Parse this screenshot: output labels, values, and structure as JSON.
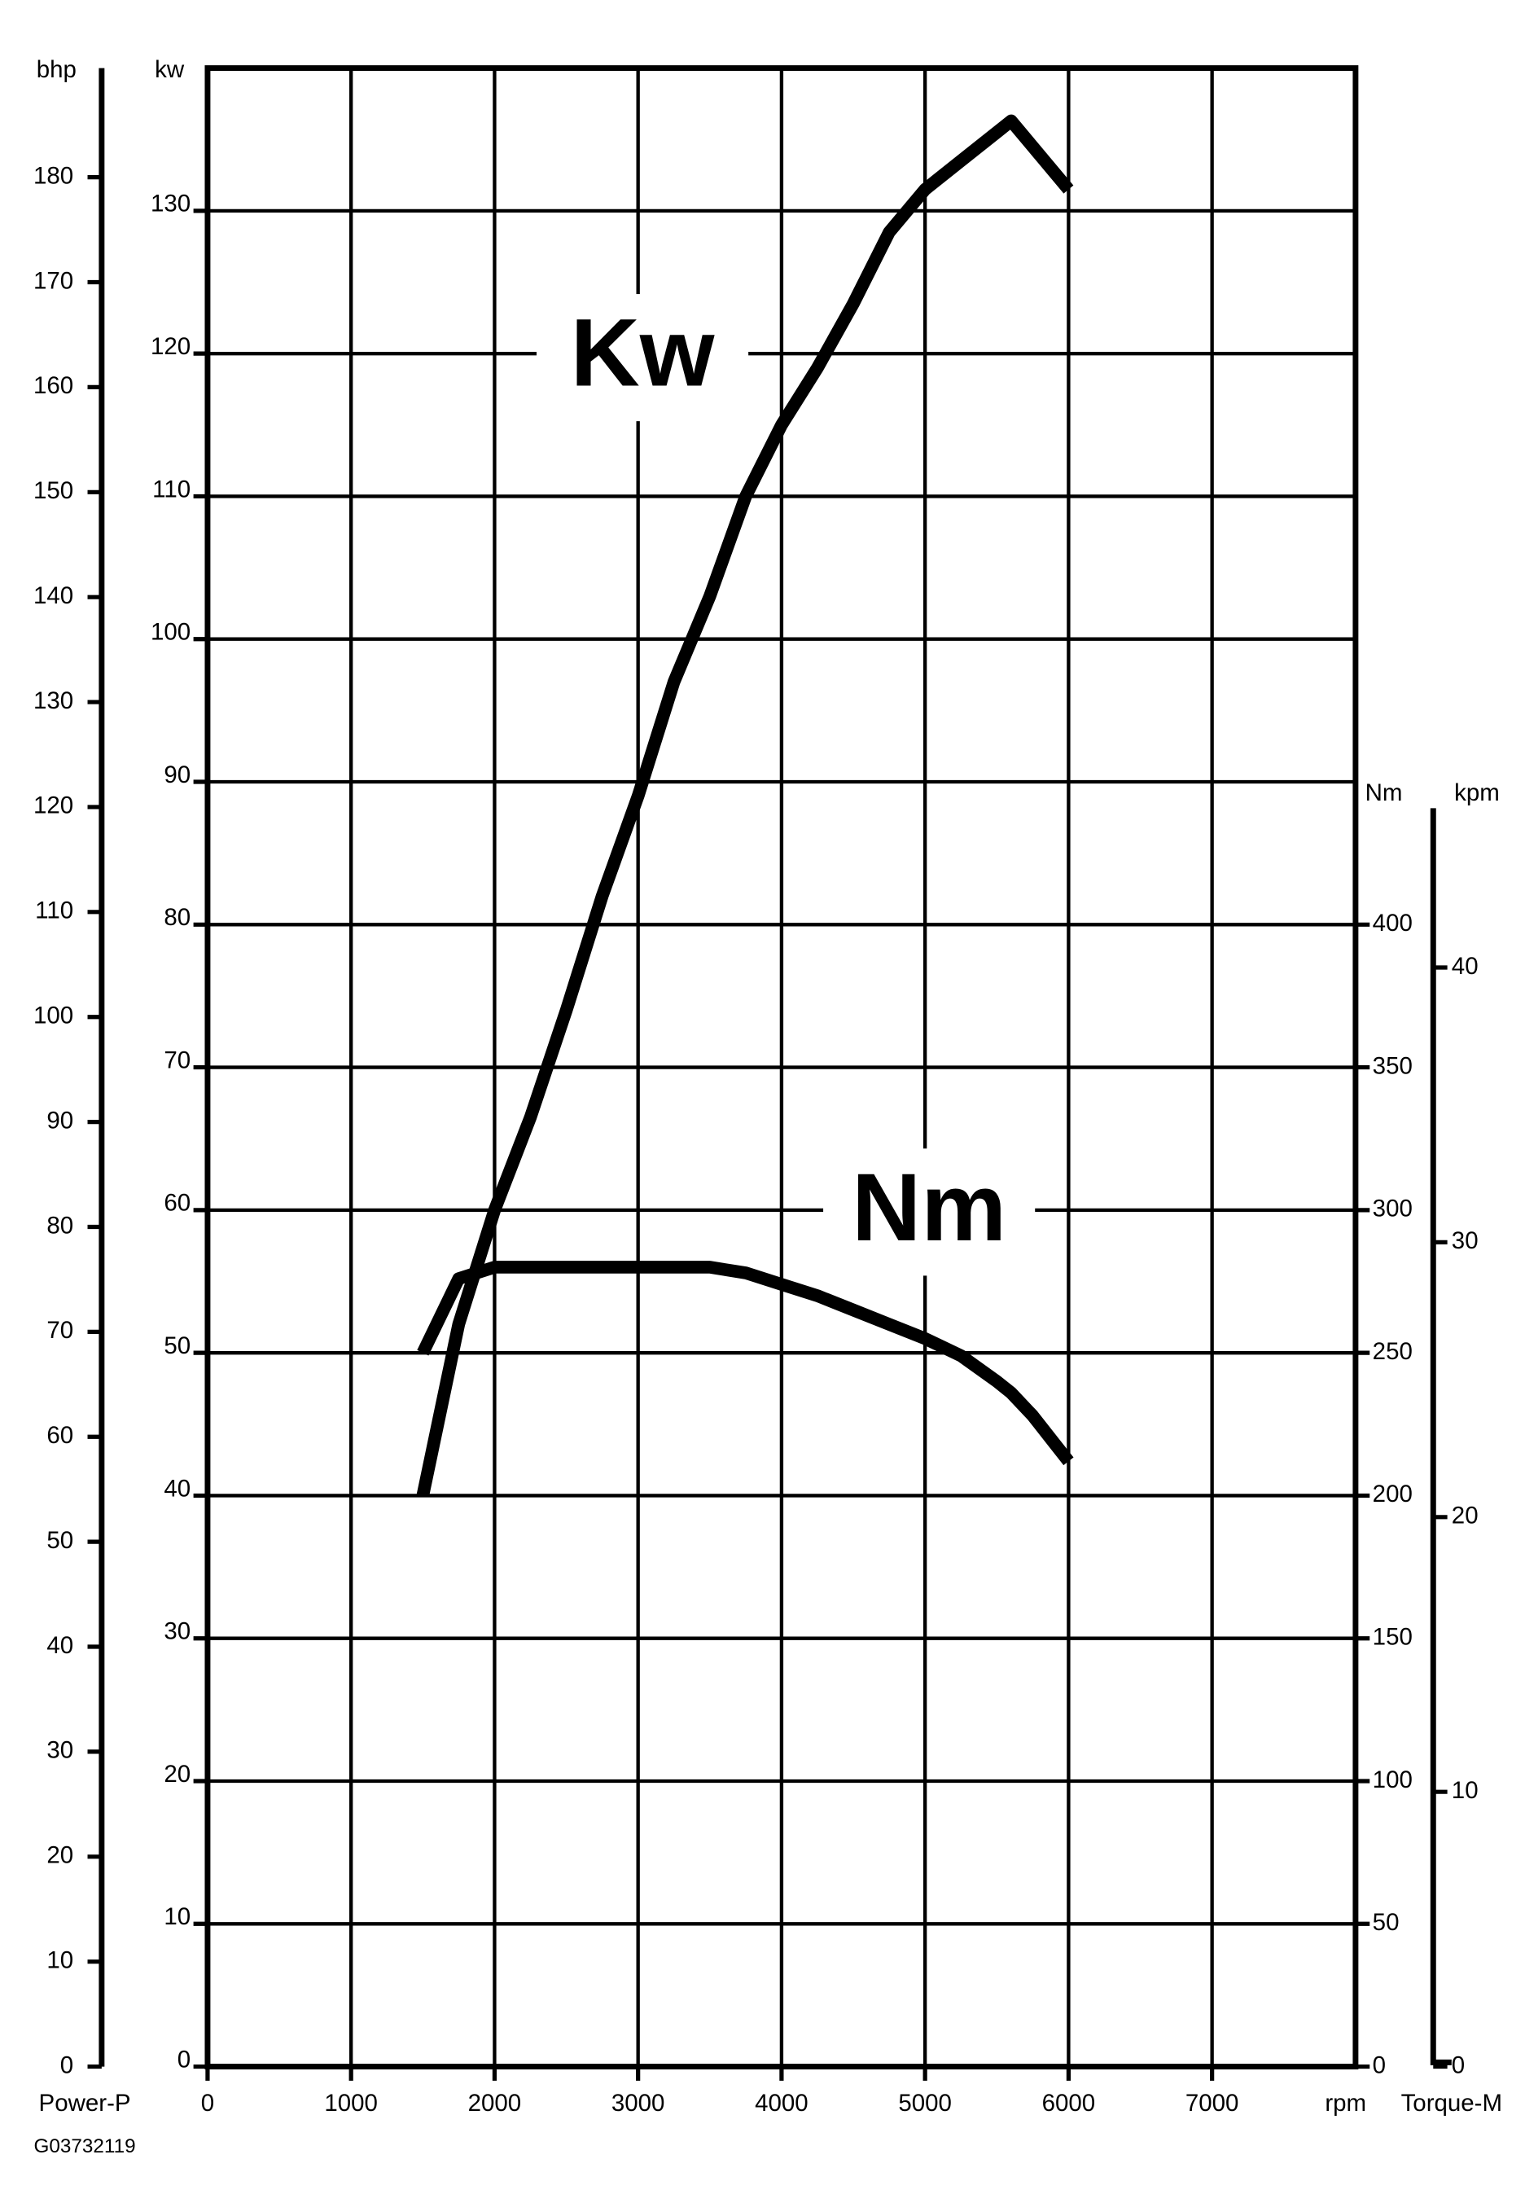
{
  "chart_data": {
    "type": "line",
    "x": [
      1500,
      1750,
      2000,
      2250,
      2500,
      2750,
      3000,
      3250,
      3500,
      3750,
      4000,
      4250,
      4500,
      4750,
      5000,
      5250,
      5500,
      5600,
      5750,
      6000
    ],
    "series": [
      {
        "name": "Kw",
        "color": "#000000",
        "axis": "y",
        "values": [
          40,
          52,
          60,
          66.5,
          74,
          82,
          89,
          97,
          103,
          110,
          115,
          119,
          123.5,
          128.5,
          131.5,
          133.5,
          135.5,
          136.3,
          134.5,
          131.5
        ]
      },
      {
        "name": "Nm",
        "color": "#000000",
        "axis": "y2",
        "values": [
          250,
          276,
          280,
          280,
          280,
          280,
          280,
          280,
          280,
          278,
          274,
          270,
          265,
          260,
          255,
          249,
          240,
          236,
          228,
          212
        ]
      }
    ],
    "xlim": [
      0,
      8000
    ],
    "xticks": [
      0,
      1000,
      2000,
      3000,
      4000,
      5000,
      6000,
      7000
    ],
    "x_label": "rpm",
    "ylim": [
      0,
      140
    ],
    "yticks": [
      0,
      10,
      20,
      30,
      40,
      50,
      60,
      70,
      80,
      90,
      100,
      110,
      120,
      130
    ],
    "y_label": "kw",
    "y2lim": [
      0,
      700
    ],
    "y2ticks": [
      0,
      50,
      100,
      150,
      200,
      250,
      300,
      350,
      400
    ],
    "y2_label": "Nm",
    "bhp_lim": [
      0,
      190.4
    ],
    "bhp_ticks": [
      0,
      10,
      20,
      30,
      40,
      50,
      60,
      70,
      80,
      90,
      100,
      110,
      120,
      130,
      140,
      150,
      160,
      170,
      180
    ],
    "bhp_label": "bhp",
    "bhp_title": "Power-P",
    "kpm_lim": [
      0,
      45.8
    ],
    "kpm_ticks": [
      0,
      10,
      20,
      30,
      40
    ],
    "kpm_label": "kpm",
    "kpm_title": "Torque-M",
    "code": "G03732119",
    "grid": true
  }
}
